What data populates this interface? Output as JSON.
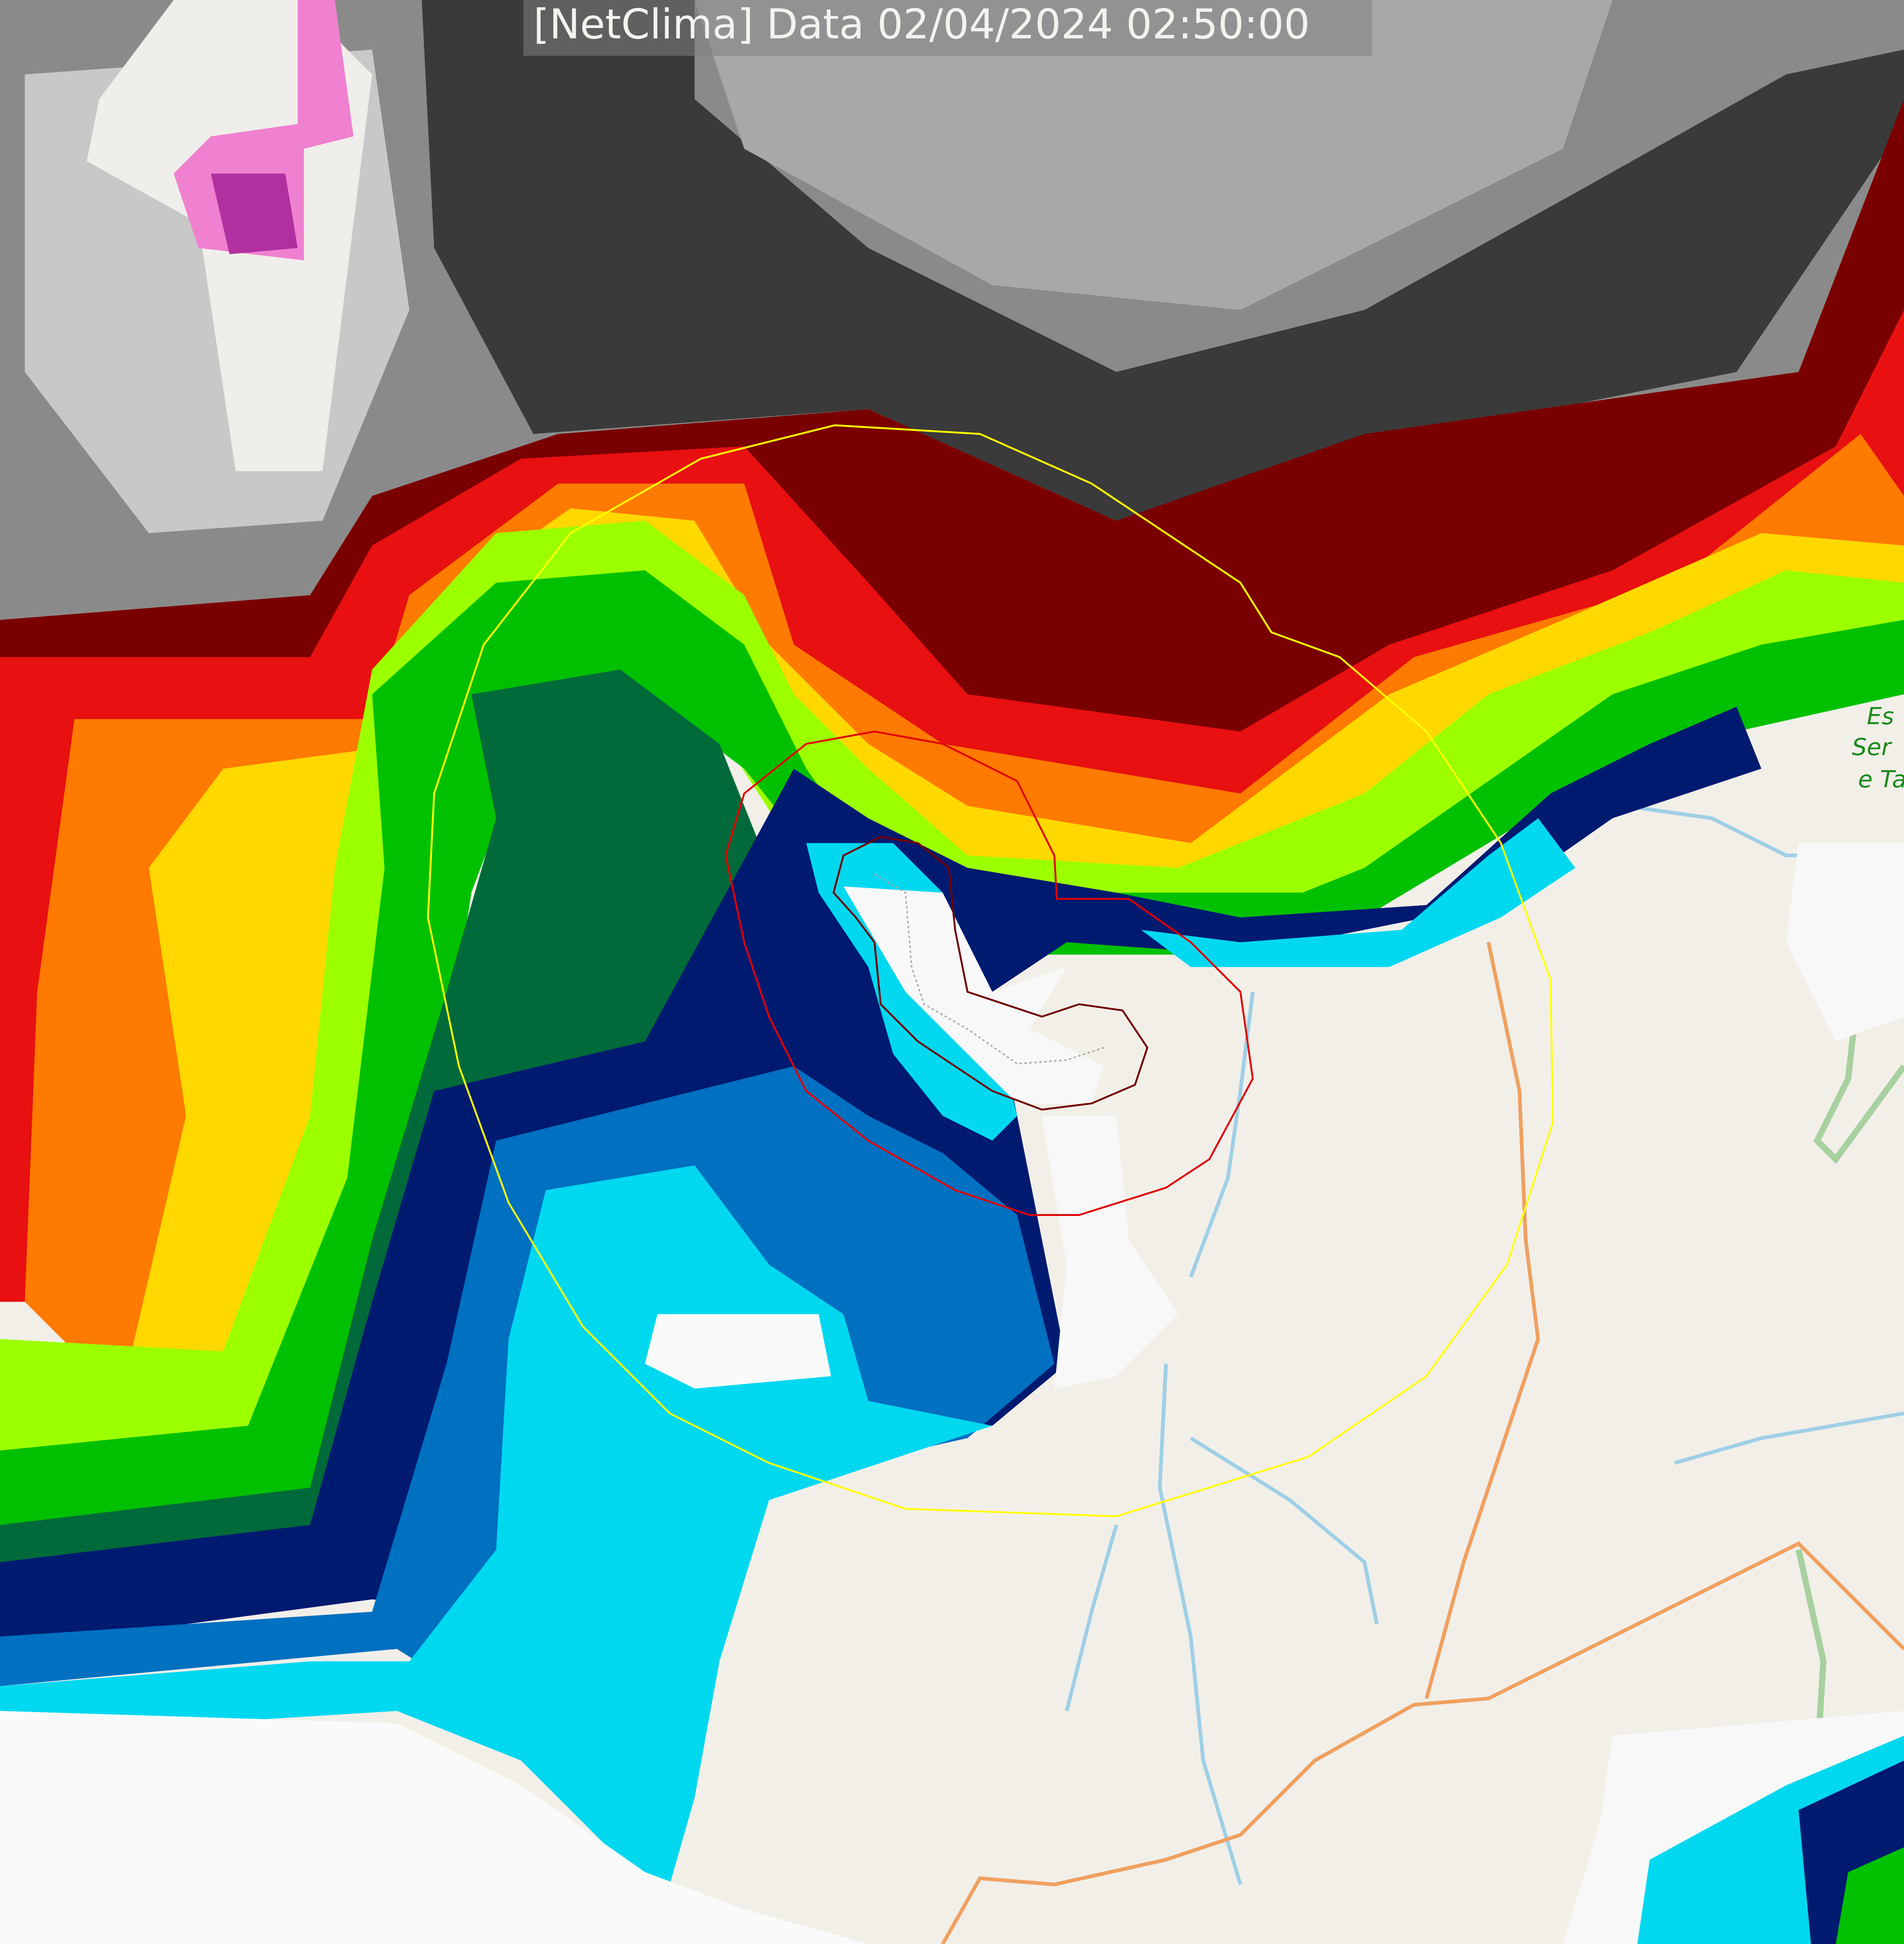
{
  "header": {
    "title": "[NetClima] Data 02/04/2024 02:50:00"
  },
  "map": {
    "place_label_lines": [
      "Es",
      "Ser",
      "e Ta"
    ],
    "colors": {
      "land": "#f2efe9",
      "cloud_gray": "#8a8a8a",
      "dark_red": "#7a0000",
      "red": "#e81010",
      "orange": "#ff7a00",
      "yellow": "#ffe000",
      "light_green": "#9cff00",
      "green": "#00c000",
      "dark_green": "#006a3a",
      "navy": "#001a70",
      "blue": "#0070c0",
      "cyan": "#00d8f0",
      "pink": "#f080d0",
      "range_ring": "#ffff00",
      "contour_red": "#e00000",
      "contour_dark": "#700000",
      "river": "#9fcfe6",
      "road": "#f0a060"
    }
  }
}
